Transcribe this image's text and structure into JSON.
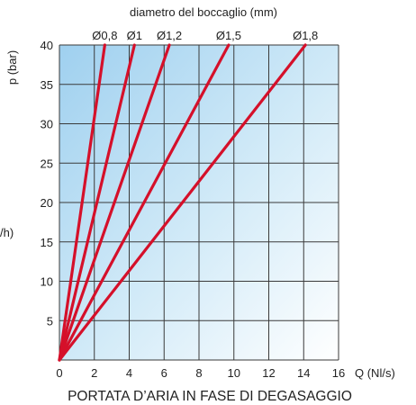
{
  "chart_data": {
    "type": "line",
    "top_axis_title": "diametro del boccaglio (mm)",
    "xlabel": "Q (Nl/s)",
    "ylabel": "p (bar)",
    "left_cut_label": "/h)",
    "footer": "PORTATA D’ARIA IN FASE DI DEGASAGGIO",
    "xlim": [
      0,
      16
    ],
    "ylim": [
      0,
      40
    ],
    "x_ticks": [
      "0",
      "2",
      "4",
      "6",
      "8",
      "10",
      "12",
      "14",
      "16"
    ],
    "y_ticks": [
      "5",
      "10",
      "15",
      "20",
      "25",
      "30",
      "35",
      "40"
    ],
    "grid": true,
    "line_color": "#d5102a",
    "series": [
      {
        "name": "Ø0,8",
        "x": [
          0,
          2.6
        ],
        "y": [
          0,
          40
        ]
      },
      {
        "name": "Ø1",
        "x": [
          0,
          4.3
        ],
        "y": [
          0,
          40
        ]
      },
      {
        "name": "Ø1,2",
        "x": [
          0,
          6.3
        ],
        "y": [
          0,
          40
        ]
      },
      {
        "name": "Ø1,5",
        "x": [
          0,
          9.7
        ],
        "y": [
          0,
          40
        ]
      },
      {
        "name": "Ø1,8",
        "x": [
          0,
          14.1
        ],
        "y": [
          0,
          40
        ]
      }
    ]
  }
}
